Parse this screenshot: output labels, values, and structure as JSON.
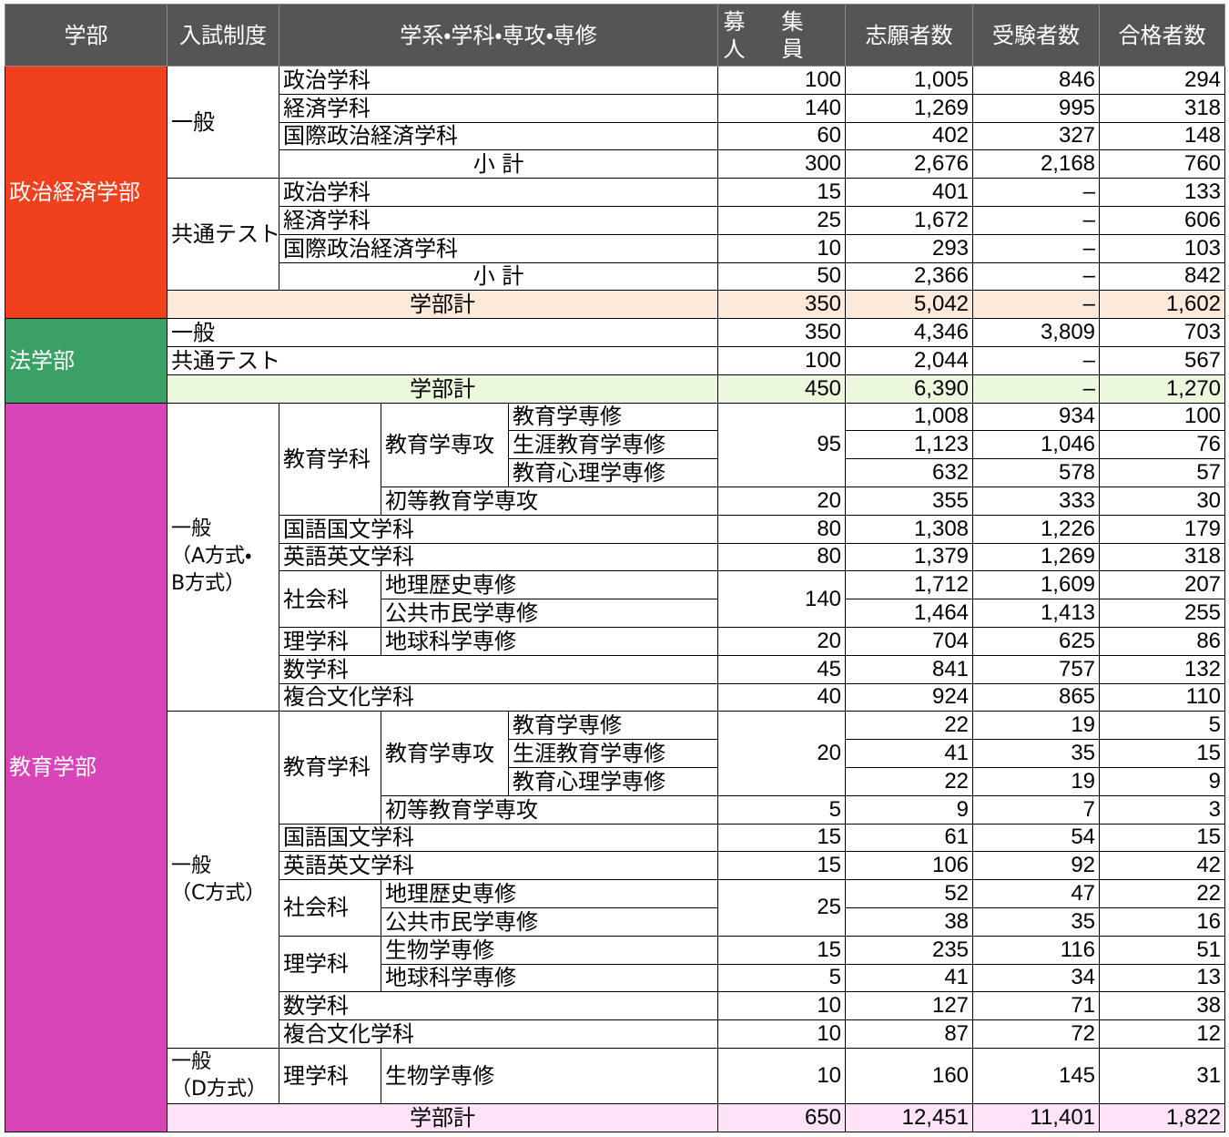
{
  "header": {
    "faculty": "学部",
    "method": "入試制度",
    "department": "学系・学科・専攻・専修",
    "quota": "募集人員",
    "applicants": "志願者数",
    "examinees": "受験者数",
    "passed": "合格者数"
  },
  "seikei": {
    "name": "政治経済学部",
    "ippan": {
      "method": "一般",
      "rows": [
        [
          "政治学科",
          "100",
          "1,005",
          "846",
          "294"
        ],
        [
          "経済学科",
          "140",
          "1,269",
          "995",
          "318"
        ],
        [
          "国際政治経済学科",
          "60",
          "402",
          "327",
          "148"
        ]
      ],
      "subtotal": [
        "小 計",
        "300",
        "2,676",
        "2,168",
        "760"
      ]
    },
    "kyotsu": {
      "method": "共通テスト",
      "rows": [
        [
          "政治学科",
          "15",
          "401",
          "–",
          "133"
        ],
        [
          "経済学科",
          "25",
          "1,672",
          "–",
          "606"
        ],
        [
          "国際政治経済学科",
          "10",
          "293",
          "–",
          "103"
        ]
      ],
      "subtotal": [
        "小 計",
        "50",
        "2,366",
        "–",
        "842"
      ]
    },
    "total": [
      "学部計",
      "350",
      "5,042",
      "–",
      "1,602"
    ]
  },
  "hogaku": {
    "name": "法学部",
    "rows": [
      [
        "一般",
        "350",
        "4,346",
        "3,809",
        "703"
      ],
      [
        "共通テスト",
        "100",
        "2,044",
        "–",
        "567"
      ]
    ],
    "total": [
      "学部計",
      "450",
      "6,390",
      "–",
      "1,270"
    ]
  },
  "kyoiku": {
    "name": "教育学部",
    "ab": {
      "method": "一般\n（A方式・\nB方式）",
      "kyoiku": {
        "name": "教育学科",
        "major": "教育学専攻",
        "quota": "95",
        "courses": [
          [
            "教育学専修",
            "1,008",
            "934",
            "100"
          ],
          [
            "生涯教育学専修",
            "1,123",
            "1,046",
            "76"
          ],
          [
            "教育心理学専修",
            "632",
            "578",
            "57"
          ]
        ]
      },
      "shoto": [
        "初等教育学専攻",
        "20",
        "355",
        "333",
        "30"
      ],
      "kokugo": [
        "国語国文学科",
        "80",
        "1,308",
        "1,226",
        "179"
      ],
      "eigo": [
        "英語英文学科",
        "80",
        "1,379",
        "1,269",
        "318"
      ],
      "shakai": {
        "name": "社会科",
        "quota": "140",
        "courses": [
          [
            "地理歴史専修",
            "1,712",
            "1,609",
            "207"
          ],
          [
            "公共市民学専修",
            "1,464",
            "1,413",
            "255"
          ]
        ]
      },
      "rika": {
        "name": "理学科",
        "courses": [
          [
            "地球科学専修",
            "20",
            "704",
            "625",
            "86"
          ]
        ]
      },
      "sugaku": [
        "数学科",
        "45",
        "841",
        "757",
        "132"
      ],
      "fukugo": [
        "複合文化学科",
        "40",
        "924",
        "865",
        "110"
      ]
    },
    "c": {
      "method": "一般\n（C方式）",
      "kyoiku": {
        "name": "教育学科",
        "major": "教育学専攻",
        "quota": "20",
        "courses": [
          [
            "教育学専修",
            "22",
            "19",
            "5"
          ],
          [
            "生涯教育学専修",
            "41",
            "35",
            "15"
          ],
          [
            "教育心理学専修",
            "22",
            "19",
            "9"
          ]
        ]
      },
      "shoto": [
        "初等教育学専攻",
        "5",
        "9",
        "7",
        "3"
      ],
      "kokugo": [
        "国語国文学科",
        "15",
        "61",
        "54",
        "15"
      ],
      "eigo": [
        "英語英文学科",
        "15",
        "106",
        "92",
        "42"
      ],
      "shakai": {
        "name": "社会科",
        "quota": "25",
        "courses": [
          [
            "地理歴史専修",
            "52",
            "47",
            "22"
          ],
          [
            "公共市民学専修",
            "38",
            "35",
            "16"
          ]
        ]
      },
      "rika": {
        "name": "理学科",
        "courses": [
          [
            "生物学専修",
            "15",
            "235",
            "116",
            "51"
          ],
          [
            "地球科学専修",
            "5",
            "41",
            "34",
            "13"
          ]
        ]
      },
      "sugaku": [
        "数学科",
        "10",
        "127",
        "71",
        "38"
      ],
      "fukugo": [
        "複合文化学科",
        "10",
        "87",
        "72",
        "12"
      ]
    },
    "d": {
      "method": "一般\n（D方式）",
      "rika": {
        "name": "理学科",
        "courses": [
          [
            "生物学専修",
            "10",
            "160",
            "145",
            "31"
          ]
        ]
      }
    },
    "total": [
      "学部計",
      "650",
      "12,451",
      "11,401",
      "1,822"
    ]
  }
}
